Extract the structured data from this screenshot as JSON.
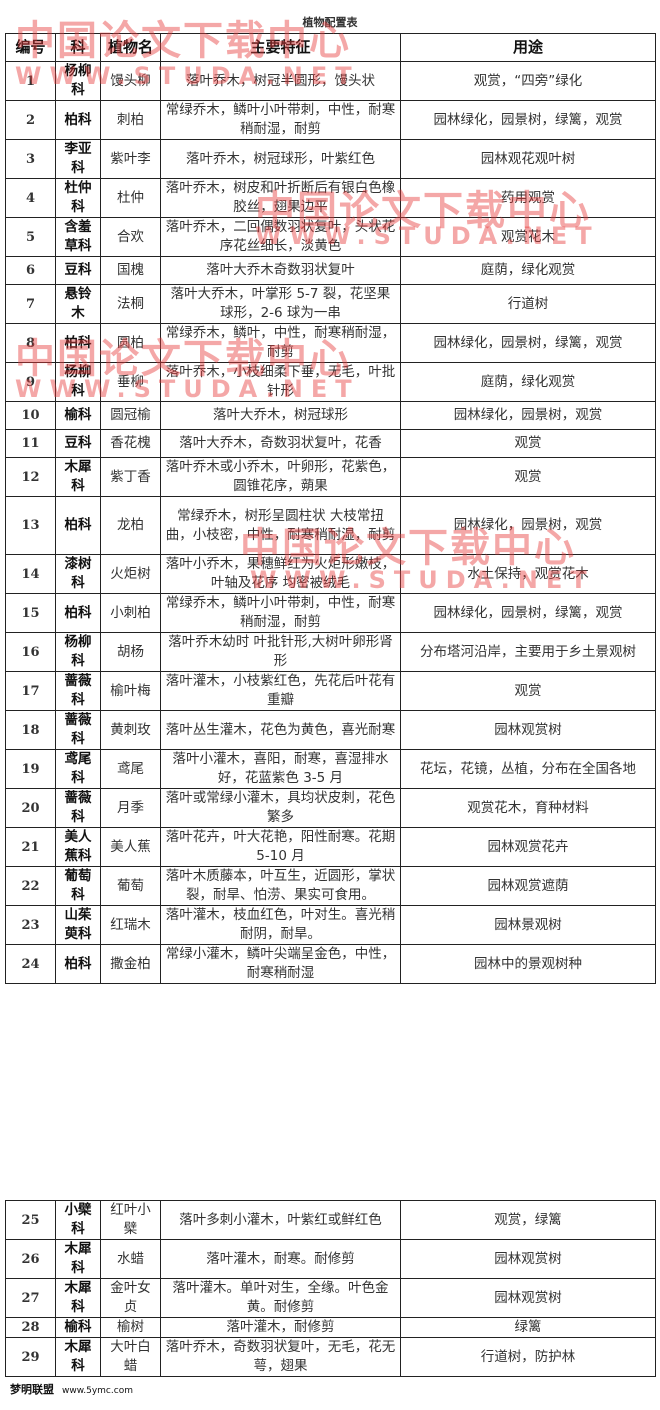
{
  "title": "植物配置表",
  "headers": [
    "编号",
    "科",
    "植物名",
    "主要特征",
    "用途"
  ],
  "rows": [
    {
      "no": "1",
      "family": "杨柳科",
      "name": "馒头柳",
      "features": "落叶乔木，树冠半圆形，馒头状",
      "use": "观赏，“四旁”绿化"
    },
    {
      "no": "2",
      "family": "柏科",
      "name": "刺柏",
      "features": "常绿乔木，鳞叶小叶带刺，中性，耐寒稍耐湿，耐剪",
      "use": "园林绿化，园景树，绿篱，观赏"
    },
    {
      "no": "3",
      "family": "李亚科",
      "name": "紫叶李",
      "features": "落叶乔木，树冠球形，叶紫红色",
      "use": "园林观花观叶树"
    },
    {
      "no": "4",
      "family": "杜仲科",
      "name": "杜仲",
      "features": "落叶乔木，树皮和叶折断后有银白色橡胶丝，翅果边平",
      "use": "药用观赏"
    },
    {
      "no": "5",
      "family": "含羞草科",
      "name": "合欢",
      "features": "落叶乔木，二回偶数羽状复叶，头状花序花丝细长，淡黄色",
      "use": "观赏花木"
    },
    {
      "no": "6",
      "family": "豆科",
      "name": "国槐",
      "features": "落叶大乔木奇数羽状复叶",
      "use": "庭荫，绿化观赏"
    },
    {
      "no": "7",
      "family": "悬铃木",
      "name": "法桐",
      "features": "落叶大乔木，叶掌形 5-7 裂，花坚果球形，2-6 球为一串",
      "use": "行道树"
    },
    {
      "no": "8",
      "family": "柏科",
      "name": "圆柏",
      "features": "常绿乔木，鳞叶，中性，耐寒稍耐湿，耐剪",
      "use": "园林绿化，园景树，绿篱，观赏"
    },
    {
      "no": "9",
      "family": "杨柳科",
      "name": "垂柳",
      "features": "落叶乔木，小枝细柔下垂，无毛，叶批针形",
      "use": "庭荫，绿化观赏"
    },
    {
      "no": "10",
      "family": "榆科",
      "name": "圆冠榆",
      "features": "落叶大乔木，树冠球形",
      "use": "园林绿化，园景树，观赏"
    },
    {
      "no": "11",
      "family": "豆科",
      "name": "香花槐",
      "features": "落叶大乔木，奇数羽状复叶，花香",
      "use": "观赏"
    },
    {
      "no": "12",
      "family": "木犀科",
      "name": "紫丁香",
      "features": "落叶乔木或小乔木，叶卵形，花紫色，圆锥花序，蒴果",
      "use": "观赏"
    },
    {
      "no": "13",
      "family": "柏科",
      "name": "龙柏",
      "features": "常绿乔木，树形呈圆柱状 大枝常扭曲，小枝密，中性，耐寒稍耐湿，耐剪",
      "use": "园林绿化，园景树，观赏"
    },
    {
      "no": "14",
      "family": "漆树科",
      "name": "火炬树",
      "features": "落叶小乔木，果穗鲜红为火炬形嫩枝，叶轴及花序 均密被绒毛",
      "use": "水土保持，观赏花木"
    },
    {
      "no": "15",
      "family": "柏科",
      "name": "小刺柏",
      "features": "常绿乔木，鳞叶小叶带刺，中性，耐寒稍耐湿，耐剪",
      "use": "园林绿化，园景树，绿篱，观赏"
    },
    {
      "no": "16",
      "family": "杨柳科",
      "name": "胡杨",
      "features": "落叶乔木幼时 叶批针形,大树叶卵形肾形",
      "use": "分布塔河沿岸，主要用于乡土景观树"
    },
    {
      "no": "17",
      "family": "蔷薇科",
      "name": "榆叶梅",
      "features": "落叶灌木，小枝紫红色，先花后叶花有重瓣",
      "use": "观赏"
    },
    {
      "no": "18",
      "family": "蔷薇科",
      "name": "黄刺玫",
      "features": "落叶丛生灌木，花色为黄色，喜光耐寒",
      "use": "园林观赏树"
    },
    {
      "no": "19",
      "family": "鸢尾科",
      "name": "鸢尾",
      "features": "落叶小灌木，喜阳，耐寒，喜湿排水好，花蓝紫色 3-5 月",
      "use": "花坛，花镜，丛植，分布在全国各地"
    },
    {
      "no": "20",
      "family": "蔷薇科",
      "name": "月季",
      "features": "落叶或常绿小灌木，具均状皮刺，花色繁多",
      "use": "观赏花木，育种材料"
    },
    {
      "no": "21",
      "family": "美人蕉科",
      "name": "美人蕉",
      "features": "落叶花卉，叶大花艳，阳性耐寒。花期 5-10 月",
      "use": "园林观赏花卉"
    },
    {
      "no": "22",
      "family": "葡萄科",
      "name": "葡萄",
      "features": "落叶木质藤本，叶互生，近圆形，掌状裂，耐旱、怕涝、果实可食用。",
      "use": "园林观赏遮荫"
    },
    {
      "no": "23",
      "family": "山茱萸科",
      "name": "红瑞木",
      "features": "落叶灌木，枝血红色，叶对生。喜光稍耐阴，耐旱。",
      "use": "园林景观树"
    },
    {
      "no": "24",
      "family": "柏科",
      "name": "撒金柏",
      "features": "常绿小灌木，鳞叶尖端呈金色，中性，耐寒稍耐湿",
      "use": "园林中的景观树种"
    }
  ],
  "rows2": [
    {
      "no": "25",
      "family": "小檗科",
      "name": "红叶小檗",
      "features": "落叶多刺小灌木，叶紫红或鲜红色",
      "use": "观赏，绿篱"
    },
    {
      "no": "26",
      "family": "木犀科",
      "name": "水蜡",
      "features": "落叶灌木，耐寒。耐修剪",
      "use": "园林观赏树"
    },
    {
      "no": "27",
      "family": "木犀科",
      "name": "金叶女贞",
      "features": "落叶灌木。单叶对生，全缘。叶色金黄。耐修剪",
      "use": "园林观赏树"
    },
    {
      "no": "28",
      "family": "榆科",
      "name": "榆树",
      "features": "落叶灌木，耐修剪",
      "use": "绿篱"
    },
    {
      "no": "29",
      "family": "木犀科",
      "name": "大叶白蜡",
      "features": "落叶乔木，奇数羽状复叶，无毛，花无萼，翅果",
      "use": "行道树，防护林"
    }
  ],
  "watermarks": {
    "cn": "中国论文下载中心",
    "url": "WWW.STUDA.NET",
    "logo": "梦明联盟",
    "logo_url": "www.5ymc.com"
  },
  "colors": {
    "watermark": "#e63c3c",
    "border": "#222222"
  }
}
